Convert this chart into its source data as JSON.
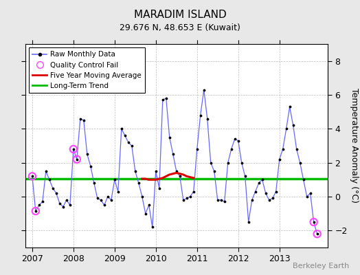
{
  "title": "MARADIM ISLAND",
  "subtitle": "29.676 N, 48.653 E (Kuwait)",
  "ylabel": "Temperature Anomaly (°C)",
  "watermark": "Berkeley Earth",
  "ylim": [
    -3,
    9
  ],
  "yticks": [
    -2,
    0,
    2,
    4,
    6,
    8
  ],
  "background_color": "#e8e8e8",
  "plot_bg_color": "#ffffff",
  "raw_color": "#6666ff",
  "trend_color": "#00bb00",
  "moving_avg_color": "#dd0000",
  "qc_fail_color": "#ff44ff",
  "raw_data_x": [
    2007.0,
    2007.083,
    2007.167,
    2007.25,
    2007.333,
    2007.417,
    2007.5,
    2007.583,
    2007.667,
    2007.75,
    2007.833,
    2007.917,
    2008.0,
    2008.083,
    2008.167,
    2008.25,
    2008.333,
    2008.417,
    2008.5,
    2008.583,
    2008.667,
    2008.75,
    2008.833,
    2008.917,
    2009.0,
    2009.083,
    2009.167,
    2009.25,
    2009.333,
    2009.417,
    2009.5,
    2009.583,
    2009.667,
    2009.75,
    2009.833,
    2009.917,
    2010.0,
    2010.083,
    2010.167,
    2010.25,
    2010.333,
    2010.417,
    2010.5,
    2010.583,
    2010.667,
    2010.75,
    2010.833,
    2010.917,
    2011.0,
    2011.083,
    2011.167,
    2011.25,
    2011.333,
    2011.417,
    2011.5,
    2011.583,
    2011.667,
    2011.75,
    2011.833,
    2011.917,
    2012.0,
    2012.083,
    2012.167,
    2012.25,
    2012.333,
    2012.417,
    2012.5,
    2012.583,
    2012.667,
    2012.75,
    2012.833,
    2012.917,
    2013.0,
    2013.083,
    2013.167,
    2013.25,
    2013.333,
    2013.417,
    2013.5,
    2013.583,
    2013.667,
    2013.75,
    2013.833,
    2013.917
  ],
  "raw_data_y": [
    1.2,
    -0.85,
    -0.5,
    -0.3,
    1.5,
    1.0,
    0.5,
    0.2,
    -0.4,
    -0.6,
    -0.2,
    -0.5,
    2.8,
    2.2,
    4.6,
    4.5,
    2.5,
    1.8,
    0.8,
    -0.1,
    -0.2,
    -0.5,
    0.0,
    -0.2,
    1.0,
    0.3,
    4.0,
    3.6,
    3.2,
    3.0,
    1.5,
    0.8,
    0.0,
    -1.0,
    -0.5,
    -1.8,
    1.5,
    0.5,
    5.7,
    5.8,
    3.5,
    2.5,
    1.5,
    1.2,
    -0.2,
    -0.1,
    0.0,
    0.3,
    2.8,
    4.8,
    6.3,
    4.6,
    2.0,
    1.5,
    -0.2,
    -0.2,
    -0.3,
    2.0,
    2.8,
    3.4,
    3.3,
    2.0,
    1.2,
    -1.5,
    -0.2,
    0.3,
    0.8,
    1.0,
    0.2,
    -0.2,
    -0.1,
    0.3,
    2.2,
    2.8,
    4.0,
    5.3,
    4.2,
    2.8,
    2.0,
    1.0,
    0.0,
    0.2,
    -1.5,
    -2.2
  ],
  "qc_fail_x": [
    2007.0,
    2007.083,
    2008.0,
    2008.083,
    2013.833,
    2013.917
  ],
  "qc_fail_y": [
    1.2,
    -0.85,
    2.8,
    2.2,
    -1.5,
    -2.2
  ],
  "moving_avg_x": [
    2009.667,
    2009.75,
    2009.833,
    2009.917,
    2010.0,
    2010.083,
    2010.167,
    2010.25,
    2010.333,
    2010.417,
    2010.5,
    2010.583,
    2010.667,
    2010.75,
    2010.833,
    2010.917
  ],
  "moving_avg_y": [
    1.05,
    1.05,
    1.0,
    1.0,
    1.0,
    1.05,
    1.1,
    1.2,
    1.3,
    1.35,
    1.4,
    1.35,
    1.3,
    1.2,
    1.15,
    1.1
  ],
  "long_term_trend_y": 1.05,
  "xmin": 2006.83,
  "xmax": 2014.17,
  "xticks": [
    2007,
    2008,
    2009,
    2010,
    2011,
    2012,
    2013
  ]
}
